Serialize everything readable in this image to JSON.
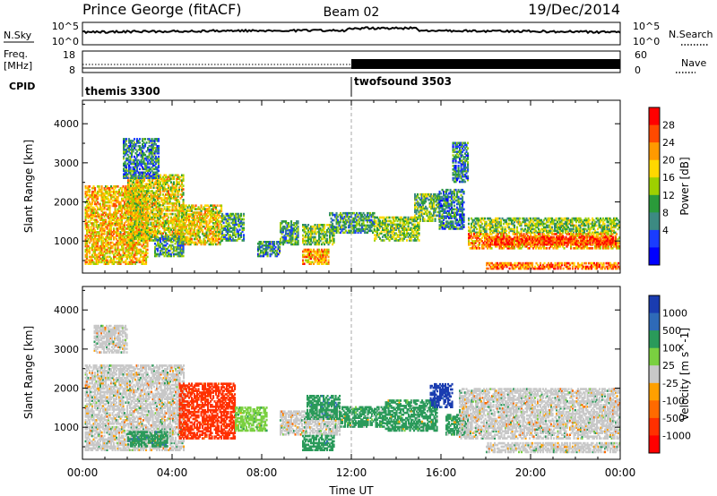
{
  "header": {
    "station": "Prince George (fitACF)",
    "beam": "Beam 02",
    "date": "19/Dec/2014"
  },
  "top_panels": {
    "nsky_label": "N.Sky",
    "nsky_ticks": [
      "10^5",
      "10^0"
    ],
    "nsearch_label": "N.Search",
    "freq_label": "Freq.",
    "freq_unit": "[MHz]",
    "freq_ticks": [
      "18",
      "8"
    ],
    "nave_label": "Nave",
    "nave_ticks": [
      "60",
      "0"
    ],
    "cpid_label": "CPID",
    "cpid_segments": [
      {
        "name": "themis 3300",
        "start_hour": 0
      },
      {
        "name": "twofsound 3503",
        "start_hour": 12
      }
    ]
  },
  "chart_data": [
    {
      "type": "heatmap",
      "name": "power",
      "ylabel": "Slant Range [km]",
      "ylim": [
        180,
        4600
      ],
      "yticks": [
        1000,
        2000,
        3000,
        4000
      ],
      "colorbar": {
        "label": "Power [dB]",
        "ticks": [
          "28",
          "24",
          "20",
          "16",
          "12",
          "8",
          "4"
        ],
        "colors": [
          "#ff0000",
          "#ff4a00",
          "#ff9a00",
          "#ffd800",
          "#9ed000",
          "#2a9a3a",
          "#3c8a82",
          "#1a3cff",
          "#0000ff"
        ]
      },
      "regions": [
        {
          "t": [
            0.1,
            2.9
          ],
          "r": [
            400,
            2400
          ],
          "value": 20
        },
        {
          "t": [
            2.0,
            4.5
          ],
          "r": [
            1000,
            2700
          ],
          "value": 18
        },
        {
          "t": [
            1.8,
            3.4
          ],
          "r": [
            2600,
            3600
          ],
          "value": 8
        },
        {
          "t": [
            4.3,
            6.2
          ],
          "r": [
            900,
            1900
          ],
          "value": 18
        },
        {
          "t": [
            3.2,
            4.5
          ],
          "r": [
            600,
            1100
          ],
          "value": 10
        },
        {
          "t": [
            6.2,
            7.2
          ],
          "r": [
            1000,
            1700
          ],
          "value": 10
        },
        {
          "t": [
            7.8,
            8.8
          ],
          "r": [
            600,
            1000
          ],
          "value": 8
        },
        {
          "t": [
            8.8,
            9.6
          ],
          "r": [
            900,
            1500
          ],
          "value": 10
        },
        {
          "t": [
            9.8,
            11.2
          ],
          "r": [
            900,
            1400
          ],
          "value": 14
        },
        {
          "t": [
            9.8,
            11.0
          ],
          "r": [
            400,
            800
          ],
          "value": 22
        },
        {
          "t": [
            11.0,
            13.0
          ],
          "r": [
            1200,
            1700
          ],
          "value": 10
        },
        {
          "t": [
            13.0,
            15.0
          ],
          "r": [
            1000,
            1600
          ],
          "value": 14
        },
        {
          "t": [
            14.8,
            15.9
          ],
          "r": [
            1500,
            2200
          ],
          "value": 12
        },
        {
          "t": [
            15.9,
            17.0
          ],
          "r": [
            1300,
            2300
          ],
          "value": 8
        },
        {
          "t": [
            16.5,
            17.2
          ],
          "r": [
            2500,
            3500
          ],
          "value": 8
        },
        {
          "t": [
            17.2,
            24.0
          ],
          "r": [
            1200,
            1600
          ],
          "value": 14
        },
        {
          "t": [
            17.2,
            24.0
          ],
          "r": [
            800,
            1200
          ],
          "value": 22
        },
        {
          "t": [
            18.0,
            23.8
          ],
          "r": [
            900,
            1100
          ],
          "value": 28
        },
        {
          "t": [
            18.0,
            24.0
          ],
          "r": [
            280,
            440
          ],
          "value": 24
        }
      ]
    },
    {
      "type": "heatmap",
      "name": "velocity",
      "xlabel": "Time UT",
      "ylabel": "Slant Range [km]",
      "ylim": [
        180,
        4600
      ],
      "yticks": [
        1000,
        2000,
        3000,
        4000
      ],
      "xlim": [
        0,
        24
      ],
      "xticks": [
        "00:00",
        "04:00",
        "08:00",
        "12:00",
        "16:00",
        "20:00",
        "00:00"
      ],
      "colorbar": {
        "label": "Velocity [m s^-1]",
        "ticks": [
          "1000",
          "500",
          "100",
          "25",
          "-25",
          "-100",
          "-500",
          "-1000"
        ],
        "colors": [
          "#1a3cb0",
          "#2e6ab8",
          "#2a9a5a",
          "#7ad040",
          "#c8c8c8",
          "#ffa000",
          "#ff6a00",
          "#ff3000",
          "#ff0000"
        ]
      },
      "regions": [
        {
          "t": [
            0.1,
            4.5
          ],
          "r": [
            400,
            2600
          ],
          "value": 0
        },
        {
          "t": [
            0.5,
            2.0
          ],
          "r": [
            2900,
            3600
          ],
          "value": 0
        },
        {
          "t": [
            2.0,
            3.8
          ],
          "r": [
            500,
            900
          ],
          "value": 300
        },
        {
          "t": [
            4.3,
            6.8
          ],
          "r": [
            700,
            2100
          ],
          "value": -600
        },
        {
          "t": [
            6.8,
            8.2
          ],
          "r": [
            900,
            1500
          ],
          "value": 50
        },
        {
          "t": [
            8.8,
            11.5
          ],
          "r": [
            800,
            1400
          ],
          "value": 0
        },
        {
          "t": [
            10.0,
            11.5
          ],
          "r": [
            1200,
            1800
          ],
          "value": 200
        },
        {
          "t": [
            9.8,
            11.2
          ],
          "r": [
            400,
            800
          ],
          "value": 200
        },
        {
          "t": [
            11.5,
            13.5
          ],
          "r": [
            1000,
            1500
          ],
          "value": 80
        },
        {
          "t": [
            13.5,
            15.8
          ],
          "r": [
            900,
            1700
          ],
          "value": 100
        },
        {
          "t": [
            15.5,
            16.5
          ],
          "r": [
            1500,
            2100
          ],
          "value": 800
        },
        {
          "t": [
            16.2,
            17.2
          ],
          "r": [
            800,
            1300
          ],
          "value": 70
        },
        {
          "t": [
            16.8,
            24.0
          ],
          "r": [
            700,
            2000
          ],
          "value": 0
        },
        {
          "t": [
            18.0,
            24.0
          ],
          "r": [
            350,
            600
          ],
          "value": 0
        }
      ]
    }
  ]
}
